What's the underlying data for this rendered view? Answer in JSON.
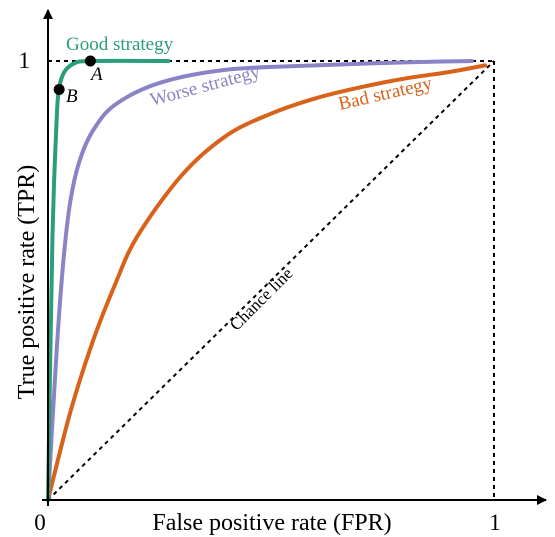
{
  "chart_data": {
    "type": "line",
    "xlabel": "False positive rate (FPR)",
    "ylabel": "True positive rate (TPR)",
    "xlim": [
      0,
      1
    ],
    "ylim": [
      0,
      1
    ],
    "x_ticks": [
      {
        "value": 0,
        "label": "0"
      },
      {
        "value": 1,
        "label": "1"
      }
    ],
    "y_ticks": [
      {
        "value": 1,
        "label": "1"
      }
    ],
    "grid": false,
    "legend": "none",
    "series": [
      {
        "name": "Good strategy",
        "color": "#2a9e7a",
        "points": [
          [
            0,
            0
          ],
          [
            0.01,
            0.6
          ],
          [
            0.02,
            0.88
          ],
          [
            0.025,
            0.935
          ],
          [
            0.03,
            0.96
          ],
          [
            0.04,
            0.98
          ],
          [
            0.06,
            0.995
          ],
          [
            0.095,
            1.0
          ],
          [
            0.27,
            1.0
          ]
        ]
      },
      {
        "name": "Worse strategy",
        "color": "#8a84c6",
        "points": [
          [
            0,
            0
          ],
          [
            0.02,
            0.35
          ],
          [
            0.035,
            0.55
          ],
          [
            0.05,
            0.68
          ],
          [
            0.07,
            0.77
          ],
          [
            0.1,
            0.84
          ],
          [
            0.15,
            0.9
          ],
          [
            0.25,
            0.95
          ],
          [
            0.4,
            0.98
          ],
          [
            0.6,
            0.99
          ],
          [
            0.8,
            0.997
          ],
          [
            0.95,
            1.0
          ]
        ]
      },
      {
        "name": "Bad strategy",
        "color": "#d9621a",
        "points": [
          [
            0,
            0
          ],
          [
            0.05,
            0.2
          ],
          [
            0.1,
            0.36
          ],
          [
            0.15,
            0.49
          ],
          [
            0.2,
            0.6
          ],
          [
            0.3,
            0.74
          ],
          [
            0.4,
            0.83
          ],
          [
            0.5,
            0.88
          ],
          [
            0.6,
            0.915
          ],
          [
            0.7,
            0.94
          ],
          [
            0.8,
            0.96
          ],
          [
            0.9,
            0.975
          ],
          [
            0.98,
            0.99
          ]
        ]
      }
    ],
    "reference_lines": [
      {
        "name": "Chance line",
        "style": "dashed",
        "color": "#000000",
        "points": [
          [
            0,
            0
          ],
          [
            1,
            1
          ]
        ]
      },
      {
        "name": "",
        "style": "dashed",
        "color": "#000000",
        "points": [
          [
            0,
            1
          ],
          [
            1,
            1
          ]
        ]
      },
      {
        "name": "",
        "style": "dashed",
        "color": "#000000",
        "points": [
          [
            1,
            1
          ],
          [
            1,
            0
          ]
        ]
      }
    ],
    "marked_points": [
      {
        "label": "A",
        "x": 0.095,
        "y": 1.0
      },
      {
        "label": "B",
        "x": 0.025,
        "y": 0.935
      }
    ],
    "annotations": [
      {
        "text": "Good strategy",
        "color": "#2a9e7a"
      },
      {
        "text": "Worse strategy",
        "color": "#8a84c6"
      },
      {
        "text": "Bad strategy",
        "color": "#d9621a"
      },
      {
        "text": "Chance line",
        "color": "#000000"
      }
    ]
  }
}
